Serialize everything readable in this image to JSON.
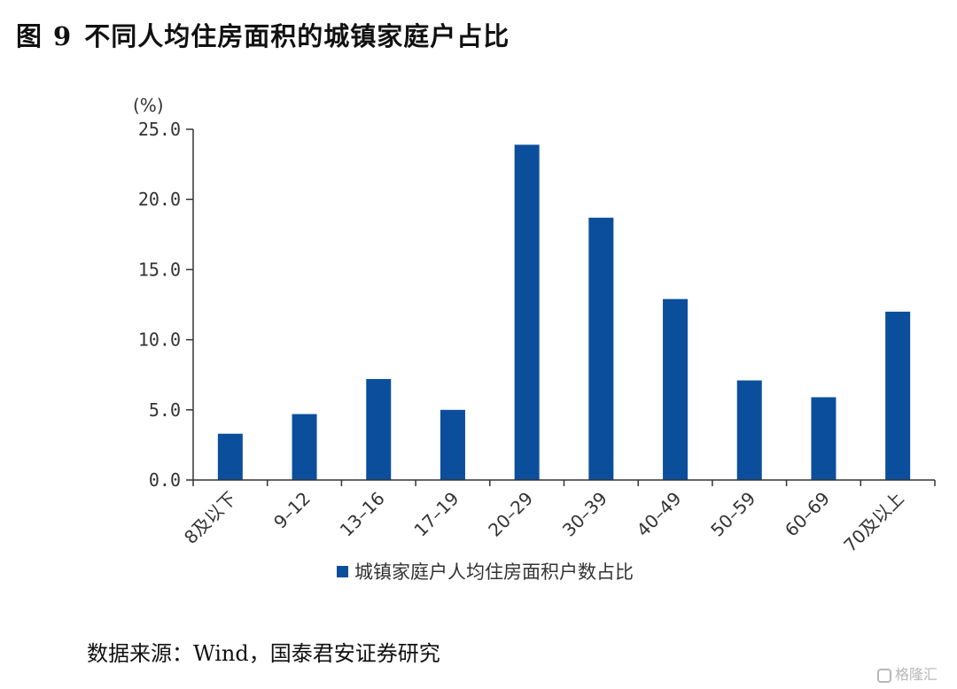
{
  "figure": {
    "prefix": "图",
    "number": "9",
    "title": "不同人均住房面积的城镇家庭户占比"
  },
  "source": "数据来源：Wind，国泰君安证券研究",
  "watermark": "格隆汇",
  "colors": {
    "bar": "#0B4F9C",
    "axis": "#333333"
  },
  "chart_data": {
    "type": "bar",
    "title": "不同人均住房面积的城镇家庭户占比",
    "ylabel": "(%)",
    "xlabel": "",
    "categories": [
      "8及以下",
      "9–12",
      "13–16",
      "17–19",
      "20–29",
      "30–39",
      "40–49",
      "50–59",
      "60–69",
      "70及以上"
    ],
    "series": [
      {
        "name": "城镇家庭户人均住房面积户数占比",
        "values": [
          3.3,
          4.7,
          7.2,
          5.0,
          23.9,
          18.7,
          12.9,
          7.1,
          5.9,
          12.0
        ]
      }
    ],
    "ylim": [
      0,
      25
    ],
    "yticks": [
      "0.0",
      "5.0",
      "10.0",
      "15.0",
      "20.0",
      "25.0"
    ],
    "grid": false,
    "legend_position": "bottom"
  }
}
